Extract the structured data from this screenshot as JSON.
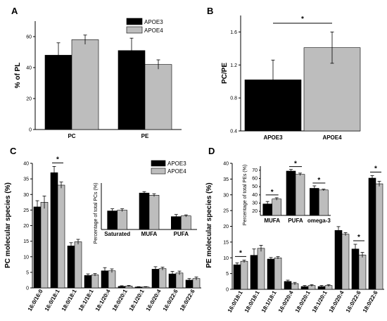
{
  "colors": {
    "APOE3": "#000000",
    "APOE4": "#bdbdbd"
  },
  "panels": {
    "A": {
      "letter": "A"
    },
    "B": {
      "letter": "B"
    },
    "C": {
      "letter": "C"
    },
    "D": {
      "letter": "D"
    }
  },
  "chart_data": [
    {
      "id": "A",
      "type": "bar",
      "title": "",
      "xlabel": "",
      "ylabel": "% of PL",
      "categories": [
        "PC",
        "PE"
      ],
      "series": [
        {
          "name": "APOE3",
          "values": [
            48,
            51
          ],
          "errors": [
            8,
            8
          ]
        },
        {
          "name": "APOE4",
          "values": [
            58,
            42
          ],
          "errors": [
            3,
            3
          ]
        }
      ],
      "ylim": [
        0,
        70
      ],
      "yticks": [
        0,
        20,
        40,
        60
      ],
      "legend": "top-right"
    },
    {
      "id": "B",
      "type": "bar",
      "title": "",
      "xlabel": "",
      "ylabel": "PC/PE",
      "categories": [
        "APOE3",
        "APOE4"
      ],
      "series": [
        {
          "name": "",
          "values": [
            1.02,
            1.41
          ],
          "errors": [
            0.24,
            0.19
          ]
        }
      ],
      "ylim": [
        0.4,
        1.8
      ],
      "yticks": [
        0.4,
        0.8,
        1.2,
        1.6
      ],
      "significance": [
        {
          "from": 0,
          "to": 1,
          "label": "*"
        }
      ]
    },
    {
      "id": "C",
      "type": "bar",
      "title": "",
      "xlabel": "",
      "ylabel": "PC  molecular species (%)",
      "categories": [
        "16:0/16:0",
        "16:0/18:1",
        "18:0/18:1",
        "18:1/18:1",
        "18:1/20:4",
        "18:0/20:1",
        "18:1/20:1",
        "16:0/20:4",
        "16:0/22:6",
        "18:0/22:6"
      ],
      "series": [
        {
          "name": "APOE3",
          "values": [
            26,
            37,
            13.5,
            4,
            5.5,
            0.5,
            0.3,
            6,
            4.5,
            2.5
          ],
          "errors": [
            2,
            2,
            1,
            0.5,
            1,
            0.2,
            0.1,
            0.8,
            0.8,
            0.5
          ]
        },
        {
          "name": "APOE4",
          "values": [
            27.5,
            33,
            14.8,
            4.2,
            5.5,
            0.6,
            0.3,
            6.2,
            4.8,
            3
          ],
          "errors": [
            2,
            1,
            0.8,
            0.4,
            0.6,
            0.2,
            0.1,
            0.5,
            0.6,
            0.5
          ]
        }
      ],
      "ylim": [
        0,
        40
      ],
      "yticks": [
        0,
        5,
        10,
        15,
        20,
        25,
        30,
        35,
        40
      ],
      "significance": [
        {
          "category": 1,
          "label": "*"
        }
      ],
      "legend": "top-right",
      "inset": {
        "type": "bar",
        "title": "Percentage of total PCs (%)",
        "categories": [
          "Saturated",
          "MUFA",
          "PUFA"
        ],
        "series": [
          {
            "name": "APOE3",
            "values": [
              26,
              51,
              18
            ],
            "errors": [
              3,
              2,
              3
            ]
          },
          {
            "name": "APOE4",
            "values": [
              27,
              48,
              19
            ],
            "errors": [
              2,
              2,
              1.5
            ]
          }
        ],
        "ylim": [
          0,
          65
        ]
      }
    },
    {
      "id": "D",
      "type": "bar",
      "title": "",
      "xlabel": "",
      "ylabel": "PE  molecular species (%)",
      "categories": [
        "16:0/18:1",
        "18:0/18:1",
        "18:1/18:1",
        "16:0/20:4",
        "18:0/20:1",
        "18:1/20:1",
        "18:0/20:4",
        "16:0/22:6",
        "18:0/22:6"
      ],
      "series": [
        {
          "name": "APOE3",
          "values": [
            7.8,
            10.8,
            9.6,
            2.5,
            0.9,
            0.9,
            18.7,
            12.8,
            35.3
          ],
          "errors": [
            0.6,
            2,
            0.5,
            0.4,
            0.3,
            0.3,
            1.2,
            1.5,
            0.8
          ]
        },
        {
          "name": "APOE4",
          "values": [
            8.9,
            13,
            10,
            1.8,
            1.2,
            1.2,
            17.5,
            10.9,
            33.5
          ],
          "errors": [
            0.4,
            1,
            0.4,
            0.4,
            0.3,
            0.3,
            0.5,
            0.8,
            0.8
          ]
        }
      ],
      "ylim": [
        0,
        40
      ],
      "yticks": [
        0,
        5,
        10,
        15,
        20,
        25,
        30,
        35,
        40
      ],
      "significance": [
        {
          "category": 0,
          "label": "*"
        },
        {
          "category": 7,
          "label": "*"
        },
        {
          "category": 8,
          "label": "*"
        }
      ],
      "inset": {
        "type": "bar",
        "title": "Percentage of total PEs (%)",
        "categories": [
          "MUFA",
          "PUFA",
          "omega-3"
        ],
        "series": [
          {
            "name": "APOE3",
            "values": [
              29,
              69,
              48
            ],
            "errors": [
              3,
              2,
              3
            ]
          },
          {
            "name": "APOE4",
            "values": [
              35,
              65,
              46
            ],
            "errors": [
              1.5,
              1.5,
              1
            ]
          }
        ],
        "yticks": [
          15,
          20,
          25,
          30,
          35,
          40,
          45,
          50,
          55,
          60,
          65,
          70,
          75
        ],
        "ylim": [
          15,
          75
        ],
        "significance": [
          {
            "category": 0,
            "label": "*"
          },
          {
            "category": 1,
            "label": "*"
          },
          {
            "category": 2,
            "label": "*"
          }
        ]
      }
    }
  ]
}
